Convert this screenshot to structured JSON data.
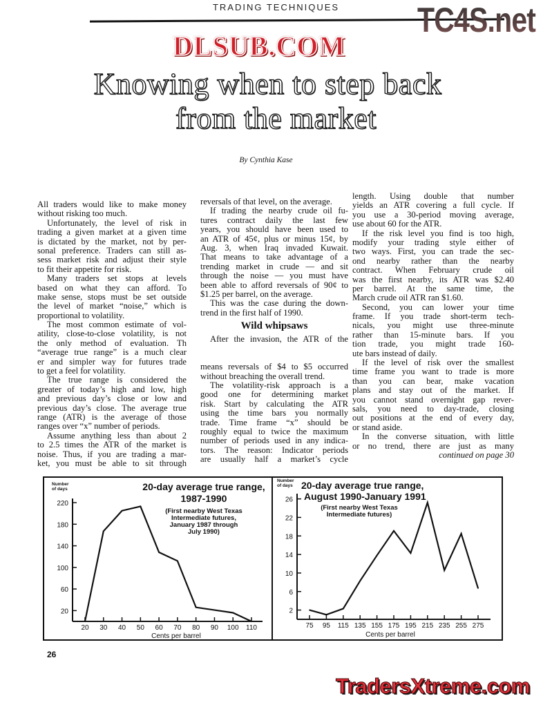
{
  "header": {
    "section_label": "TRADING TECHNIQUES"
  },
  "watermarks": {
    "top_right": "TC4S.net",
    "middle": "DLSUB.COM",
    "bottom_right": "TradersXtreme.com"
  },
  "article": {
    "title_line_1": "Knowing when to step back",
    "title_line_2": "from the market",
    "byline": "By Cynthia Kase",
    "columns": [
      [
        {
          "type": "p",
          "indent": false,
          "lines": [
            "All traders would like to make money",
            "without risking too much."
          ]
        },
        {
          "type": "p",
          "indent": true,
          "lines": [
            "Unfortunately, the level of risk in",
            "trading a given market at a given time",
            "is dictated by the market, not by per-",
            "sonal preference. Traders can still as-",
            "sess market risk and adjust their style",
            "to fit their appetite for risk."
          ]
        },
        {
          "type": "p",
          "indent": true,
          "lines": [
            "Many traders set stops at levels",
            "based on what they can afford. To",
            "make sense, stops must be set outside",
            "the level of market “noise,” which is",
            "proportional to volatility."
          ]
        },
        {
          "type": "p",
          "indent": true,
          "lines": [
            "The most common estimate of vol-",
            "atility, close-to-close volatility, is not",
            "the only method of evaluation. Th",
            "“average true range” is a much clear",
            "er and simpler way for futures trade",
            "to get a feel for volatility."
          ]
        },
        {
          "type": "p",
          "indent": true,
          "lines": [
            "The true range is considered the",
            "greater of today’s high and low, high",
            "and previous day’s close or low and",
            "previous day’s close. The average true",
            "range (ATR) is the average of those",
            "ranges over “x” number of periods."
          ]
        },
        {
          "type": "p",
          "indent": true,
          "open": true,
          "lines": [
            "Assume anything less than about 2",
            "to 2.5 times the ATR of the market is",
            "noise. Thus, if you are trading a mar-",
            "ket, you must be able to sit through"
          ]
        }
      ],
      [
        {
          "type": "p",
          "indent": false,
          "lines": [
            "reversals of that level, on the average."
          ]
        },
        {
          "type": "p",
          "indent": true,
          "lines": [
            "If trading the nearby crude oil fu-",
            "tures contract daily the last few",
            "years, you should have been used to",
            "an ATR of 45¢, plus or minus 15¢, by",
            "Aug. 3, when Iraq invaded Kuwait.",
            "That means to take advantage of a",
            "trending market in crude — and sit",
            "through the noise — you must have",
            "been able to afford reversals of 90¢ to",
            "$1.25 per barrel, on the average."
          ]
        },
        {
          "type": "p",
          "indent": true,
          "lines": [
            "This was the case during the down-",
            "trend in the first half of 1990."
          ]
        },
        {
          "type": "h",
          "text": "Wild whipsaws"
        },
        {
          "type": "p",
          "indent": true,
          "lines": [
            "After the invasion, the ATR of the",
            "",
            "",
            "means reversals of $4 to $5 occurred",
            "without breaching the overall trend."
          ]
        },
        {
          "type": "p",
          "indent": true,
          "open": true,
          "lines": [
            "The volatility-risk approach is a",
            "good one for determining market",
            "risk. Start by calculating the ATR",
            "using the time bars you normally",
            "trade. Time frame “x” should be",
            "roughly equal to twice the maximum",
            "number of periods used in any indica-",
            "tors. The reason: Indicator periods",
            "are usually half a market’s cycle"
          ]
        }
      ],
      [
        {
          "type": "p",
          "indent": false,
          "lines": [
            "length. Using double that number",
            "yields an ATR covering a full cycle. If",
            "you use a 30-period moving average,",
            "use about 60 for the ATR."
          ]
        },
        {
          "type": "p",
          "indent": true,
          "lines": [
            "If the risk level you find is too high,",
            "modify your trading style either of",
            "two ways. First, you can trade the sec-",
            "ond nearby rather than the nearby",
            "contract. When February crude oil",
            "was the first nearby, its ATR was $2.40",
            "per barrel. At the same time, the",
            "March crude oil ATR ran $1.60."
          ]
        },
        {
          "type": "p",
          "indent": true,
          "lines": [
            "Second, you can lower your time",
            "frame. If you trade short-term tech-",
            "nicals, you might use three-minute",
            "rather than 15-minute bars. If you",
            "tion trade, you might trade 160-",
            "ute bars instead of daily."
          ]
        },
        {
          "type": "p",
          "indent": true,
          "lines": [
            "If the level of risk over the smallest",
            "time frame you want to trade is more",
            "than you can bear, make vacation",
            "plans and stay out of the market. If",
            "you cannot stand overnight gap rever-",
            "sals, you need to day-trade, closing",
            "out positions at the end of every day,",
            "or stand aside."
          ]
        },
        {
          "type": "p",
          "indent": true,
          "open": true,
          "lines": [
            "In the converse situation, with little",
            "or no trend, there are just as many"
          ]
        },
        {
          "type": "c",
          "text": "continued on page 30"
        }
      ]
    ]
  },
  "chart_data": [
    {
      "type": "line",
      "title": "20-day average true range,",
      "title_line_2": "1987-1990",
      "subtitle_lines": [
        "(First nearby West Texas",
        "Intermediate futures,",
        "January 1987 through",
        "July 1990)"
      ],
      "ylabel": "Number of days",
      "xlabel": "Cents per barrel",
      "x": [
        20,
        30,
        40,
        50,
        60,
        70,
        80,
        90,
        100,
        110
      ],
      "y": [
        0,
        167,
        205,
        213,
        128,
        112,
        26,
        21,
        16,
        0
      ],
      "x_ticks": [
        20,
        30,
        40,
        50,
        60,
        70,
        80,
        90,
        100,
        110
      ],
      "y_ticks": [
        20,
        60,
        100,
        140,
        180,
        220
      ],
      "xlim": [
        13,
        117
      ],
      "ylim": [
        0,
        230
      ],
      "grid": false,
      "color": "#111111"
    },
    {
      "type": "line",
      "title": "20-day average true range,",
      "title_line_2": "August 1990-January 1991",
      "subtitle_lines": [
        "(First nearby West Texas",
        "Intermediate futures)"
      ],
      "ylabel": "Number of days",
      "xlabel": "Cents per barrel",
      "x": [
        75,
        95,
        115,
        135,
        155,
        175,
        195,
        215,
        235,
        255,
        275
      ],
      "y": [
        2,
        1,
        2.3,
        8.3,
        13.8,
        19.1,
        14.3,
        25.2,
        10.6,
        18.5,
        6.7
      ],
      "x_ticks": [
        75,
        95,
        115,
        135,
        155,
        175,
        195,
        215,
        235,
        255,
        275
      ],
      "y_ticks": [
        2,
        6,
        10,
        14,
        18,
        22,
        26
      ],
      "xlim": [
        60,
        290
      ],
      "ylim": [
        0,
        27
      ],
      "grid": false,
      "color": "#111111"
    }
  ],
  "footer": {
    "page_number": "26"
  }
}
